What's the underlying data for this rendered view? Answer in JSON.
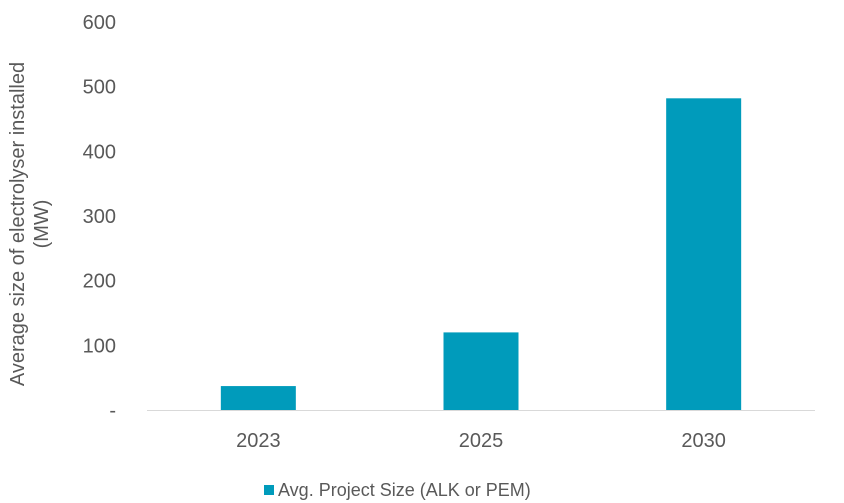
{
  "chart_data": {
    "type": "bar",
    "title": "",
    "categories": [
      "2023",
      "2025",
      "2030"
    ],
    "series": [
      {
        "name": "Avg. Project Size (ALK or PEM)",
        "values": [
          37,
          120,
          482
        ]
      }
    ],
    "ylabel_lines": [
      "Average size of electrolyser installed",
      "(MW)"
    ],
    "xlabel": "",
    "ylim": [
      0,
      600
    ],
    "yticks": [
      0,
      100,
      200,
      300,
      400,
      500,
      600
    ],
    "ytick_labels": [
      "-",
      "100",
      "200",
      "300",
      "400",
      "500",
      "600"
    ],
    "grid": false,
    "legend_position": "bottom",
    "colors": {
      "bar": "#009bbb",
      "axis": "#d9d9d9",
      "text": "#595959"
    }
  }
}
